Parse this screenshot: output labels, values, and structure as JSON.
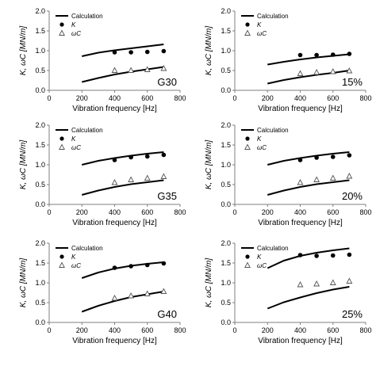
{
  "chart_data": [
    {
      "type": "line",
      "panel_label": "G30",
      "xlabel": "Vibration frequency [Hz]",
      "ylabel": "K, ωC [MN/m]",
      "xlim": [
        0,
        800
      ],
      "ylim": [
        0,
        2.0
      ],
      "xticks": [
        "0",
        "200",
        "400",
        "600",
        "800"
      ],
      "yticks": [
        "0.0",
        "0.5",
        "1.0",
        "1.5",
        "2.0"
      ],
      "legend": {
        "placement": "top-left",
        "entries": [
          "Calculation",
          "K",
          "ωC"
        ]
      },
      "series": [
        {
          "name": "Calculation",
          "style": "line",
          "x": [
            200,
            300,
            400,
            500,
            600,
            700
          ],
          "y": [
            0.86,
            0.95,
            1.01,
            1.06,
            1.11,
            1.16
          ]
        },
        {
          "name": "Calculation",
          "style": "line",
          "x": [
            200,
            300,
            400,
            500,
            600,
            700
          ],
          "y": [
            0.21,
            0.31,
            0.4,
            0.47,
            0.53,
            0.59
          ]
        },
        {
          "name": "K",
          "style": "marker-filled-circle",
          "x": [
            400,
            500,
            600,
            700
          ],
          "y": [
            0.96,
            0.96,
            0.97,
            0.99
          ]
        },
        {
          "name": "ωC",
          "style": "marker-open-triangle",
          "x": [
            400,
            500,
            600,
            700
          ],
          "y": [
            0.5,
            0.5,
            0.52,
            0.55
          ]
        }
      ]
    },
    {
      "type": "line",
      "panel_label": "15%",
      "xlabel": "Vibration frequency [Hz]",
      "ylabel": "K, ωC [MN/m]",
      "xlim": [
        0,
        800
      ],
      "ylim": [
        0,
        2.0
      ],
      "xticks": [
        "0",
        "200",
        "400",
        "600",
        "800"
      ],
      "yticks": [
        "0.0",
        "0.5",
        "1.0",
        "1.5",
        "2.0"
      ],
      "legend": {
        "placement": "top-left",
        "entries": [
          "Calculation",
          "K",
          "ωC"
        ]
      },
      "series": [
        {
          "name": "Calculation",
          "style": "line",
          "x": [
            200,
            300,
            400,
            500,
            600,
            700
          ],
          "y": [
            0.65,
            0.72,
            0.78,
            0.83,
            0.87,
            0.91
          ]
        },
        {
          "name": "Calculation",
          "style": "line",
          "x": [
            200,
            300,
            400,
            500,
            600,
            700
          ],
          "y": [
            0.17,
            0.26,
            0.33,
            0.39,
            0.44,
            0.5
          ]
        },
        {
          "name": "K",
          "style": "marker-filled-circle",
          "x": [
            400,
            500,
            600,
            700
          ],
          "y": [
            0.89,
            0.89,
            0.9,
            0.92
          ]
        },
        {
          "name": "ωC",
          "style": "marker-open-triangle",
          "x": [
            400,
            500,
            600,
            700
          ],
          "y": [
            0.42,
            0.45,
            0.47,
            0.49
          ]
        }
      ]
    },
    {
      "type": "line",
      "panel_label": "G35",
      "xlabel": "Vibration frequency [Hz]",
      "ylabel": "K, ωC [MN/m]",
      "xlim": [
        0,
        800
      ],
      "ylim": [
        0,
        2.0
      ],
      "xticks": [
        "0",
        "200",
        "400",
        "600",
        "800"
      ],
      "yticks": [
        "0.0",
        "0.5",
        "1.0",
        "1.5",
        "2.0"
      ],
      "legend": {
        "placement": "top-left",
        "entries": [
          "Calculation",
          "K",
          "ωC"
        ]
      },
      "series": [
        {
          "name": "Calculation",
          "style": "line",
          "x": [
            200,
            300,
            400,
            500,
            600,
            700
          ],
          "y": [
            1.0,
            1.1,
            1.17,
            1.23,
            1.28,
            1.32
          ]
        },
        {
          "name": "Calculation",
          "style": "line",
          "x": [
            200,
            300,
            400,
            500,
            600,
            700
          ],
          "y": [
            0.24,
            0.35,
            0.44,
            0.51,
            0.56,
            0.61
          ]
        },
        {
          "name": "K",
          "style": "marker-filled-circle",
          "x": [
            400,
            500,
            600,
            700
          ],
          "y": [
            1.12,
            1.19,
            1.21,
            1.25
          ]
        },
        {
          "name": "ωC",
          "style": "marker-open-triangle",
          "x": [
            400,
            500,
            600,
            700
          ],
          "y": [
            0.55,
            0.62,
            0.66,
            0.7
          ]
        }
      ]
    },
    {
      "type": "line",
      "panel_label": "20%",
      "xlabel": "Vibration frequency [Hz]",
      "ylabel": "K, ωC [MN/m]",
      "xlim": [
        0,
        800
      ],
      "ylim": [
        0,
        2.0
      ],
      "xticks": [
        "0",
        "200",
        "400",
        "600",
        "800"
      ],
      "yticks": [
        "0.0",
        "0.5",
        "1.0",
        "1.5",
        "2.0"
      ],
      "legend": {
        "placement": "top-left",
        "entries": [
          "Calculation",
          "K",
          "ωC"
        ]
      },
      "series": [
        {
          "name": "Calculation",
          "style": "line",
          "x": [
            200,
            300,
            400,
            500,
            600,
            700
          ],
          "y": [
            1.0,
            1.1,
            1.17,
            1.23,
            1.28,
            1.32
          ]
        },
        {
          "name": "Calculation",
          "style": "line",
          "x": [
            200,
            300,
            400,
            500,
            600,
            700
          ],
          "y": [
            0.24,
            0.35,
            0.44,
            0.51,
            0.56,
            0.61
          ]
        },
        {
          "name": "K",
          "style": "marker-filled-circle",
          "x": [
            400,
            500,
            600,
            700
          ],
          "y": [
            1.12,
            1.18,
            1.2,
            1.24
          ]
        },
        {
          "name": "ωC",
          "style": "marker-open-triangle",
          "x": [
            400,
            500,
            600,
            700
          ],
          "y": [
            0.55,
            0.62,
            0.66,
            0.71
          ]
        }
      ]
    },
    {
      "type": "line",
      "panel_label": "G40",
      "xlabel": "Vibration frequency [Hz]",
      "ylabel": "K, ωC [MN/m]",
      "xlim": [
        0,
        800
      ],
      "ylim": [
        0,
        2.0
      ],
      "xticks": [
        "0",
        "200",
        "400",
        "600",
        "800"
      ],
      "yticks": [
        "0.0",
        "0.5",
        "1.0",
        "1.5",
        "2.0"
      ],
      "legend": {
        "placement": "top-left",
        "entries": [
          "Calculation",
          "K",
          "ωC"
        ]
      },
      "series": [
        {
          "name": "Calculation",
          "style": "line",
          "x": [
            200,
            300,
            400,
            500,
            600,
            700
          ],
          "y": [
            1.12,
            1.26,
            1.36,
            1.43,
            1.48,
            1.52
          ]
        },
        {
          "name": "Calculation",
          "style": "line",
          "x": [
            200,
            300,
            400,
            500,
            600,
            700
          ],
          "y": [
            0.27,
            0.42,
            0.54,
            0.64,
            0.71,
            0.78
          ]
        },
        {
          "name": "K",
          "style": "marker-filled-circle",
          "x": [
            400,
            500,
            600,
            700
          ],
          "y": [
            1.38,
            1.42,
            1.45,
            1.49
          ]
        },
        {
          "name": "ωC",
          "style": "marker-open-triangle",
          "x": [
            400,
            500,
            600,
            700
          ],
          "y": [
            0.61,
            0.67,
            0.72,
            0.78
          ]
        }
      ]
    },
    {
      "type": "line",
      "panel_label": "25%",
      "xlabel": "Vibration frequency [Hz]",
      "ylabel": "K, ωC [MN/m]",
      "xlim": [
        0,
        800
      ],
      "ylim": [
        0,
        2.0
      ],
      "xticks": [
        "0",
        "200",
        "400",
        "600",
        "800"
      ],
      "yticks": [
        "0.0",
        "0.5",
        "1.0",
        "1.5",
        "2.0"
      ],
      "legend": {
        "placement": "top-left",
        "entries": [
          "Calculation",
          "K",
          "ωC"
        ]
      },
      "series": [
        {
          "name": "Calculation",
          "style": "line",
          "x": [
            200,
            300,
            400,
            500,
            600,
            700
          ],
          "y": [
            1.37,
            1.56,
            1.68,
            1.76,
            1.82,
            1.87
          ]
        },
        {
          "name": "Calculation",
          "style": "line",
          "x": [
            200,
            300,
            400,
            500,
            600,
            700
          ],
          "y": [
            0.35,
            0.51,
            0.63,
            0.74,
            0.83,
            0.9
          ]
        },
        {
          "name": "K",
          "style": "marker-filled-circle",
          "x": [
            400,
            500,
            600,
            700
          ],
          "y": [
            1.7,
            1.68,
            1.69,
            1.71
          ]
        },
        {
          "name": "ωC",
          "style": "marker-open-triangle",
          "x": [
            400,
            500,
            600,
            700
          ],
          "y": [
            0.95,
            0.97,
            1.0,
            1.04
          ]
        }
      ]
    }
  ]
}
